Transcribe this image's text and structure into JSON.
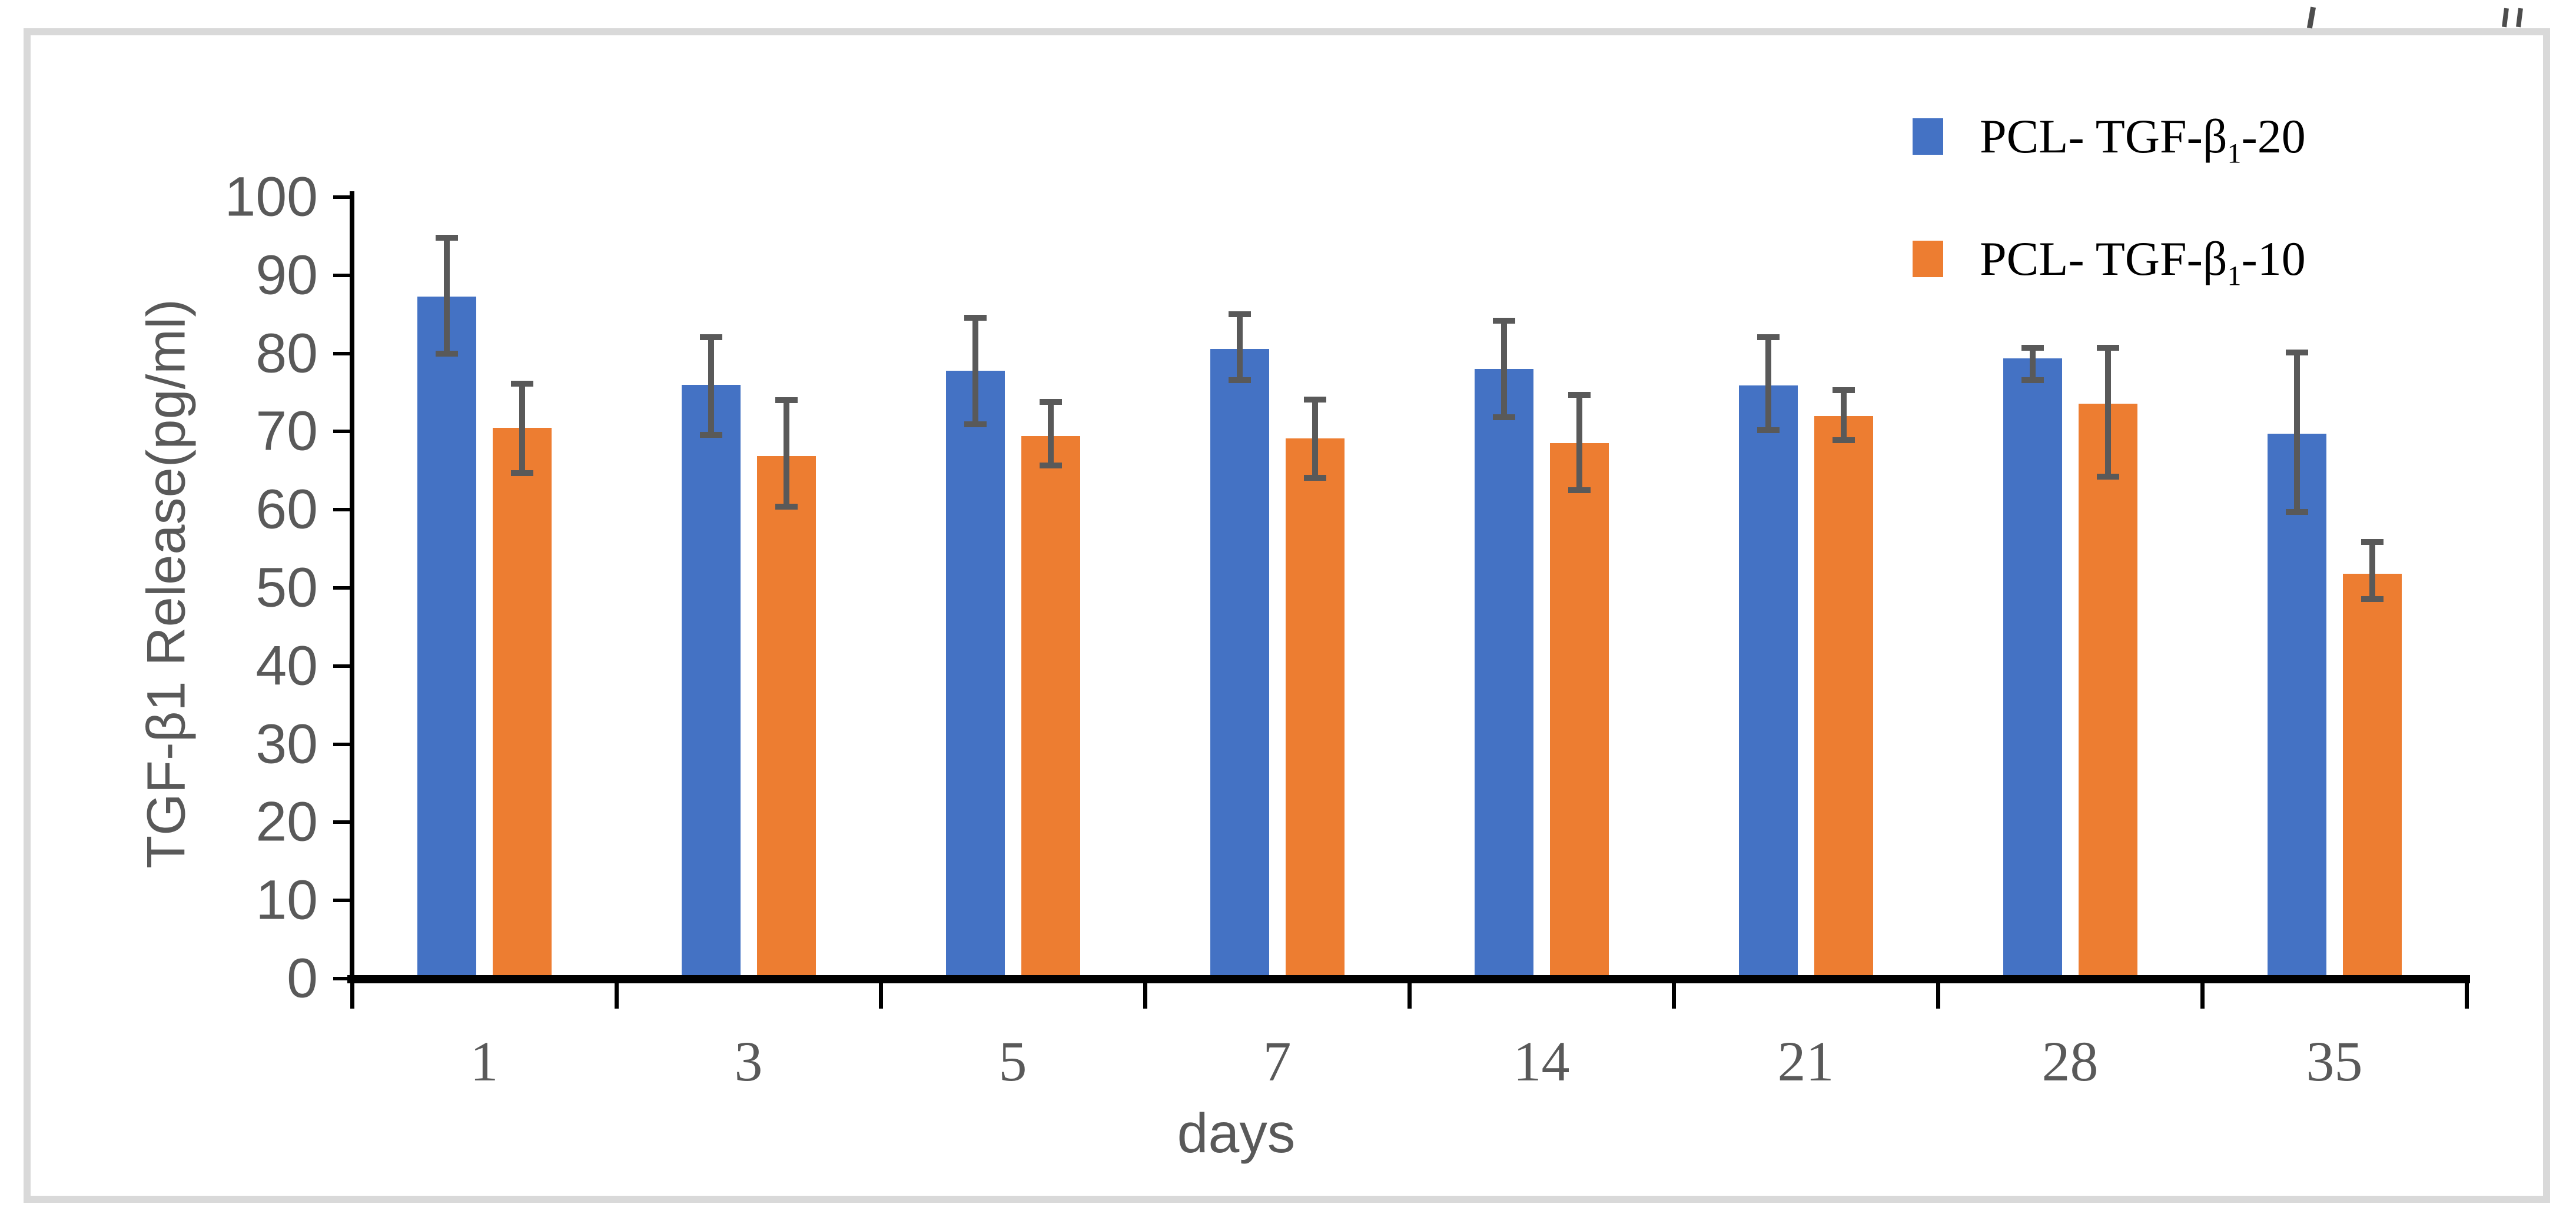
{
  "figure": {
    "border_color": "#d9d9d9",
    "background": "#ffffff",
    "axis_color": "#000000",
    "tick_label_color": "#595959",
    "error_bar_color": "#595959",
    "top_fragments": [
      "small-cropped-mark",
      "small-cropped-double-mark"
    ]
  },
  "legend": {
    "items": [
      {
        "prefix": "PCL- TGF-β",
        "sub": "1",
        "suffix": "-20",
        "color": "#4472C4"
      },
      {
        "prefix": "PCL- TGF-β",
        "sub": "1",
        "suffix": "-10",
        "color": "#ED7D31"
      }
    ]
  },
  "chart_data": {
    "type": "bar",
    "title": "",
    "xlabel": "days",
    "ylabel": "TGF-β1 Release(pg/ml)",
    "categories": [
      "1",
      "3",
      "5",
      "7",
      "14",
      "21",
      "28",
      "35"
    ],
    "yticks": [
      "0",
      "10",
      "20",
      "30",
      "40",
      "50",
      "60",
      "70",
      "80",
      "90",
      "100"
    ],
    "ylim": [
      0,
      100
    ],
    "grid": false,
    "legend_position": "top-right",
    "series": [
      {
        "name": "PCL- TGF-β1-20",
        "color": "#4472C4",
        "values": [
          87.3,
          76.0,
          77.8,
          80.6,
          78.0,
          75.9,
          79.4,
          69.7
        ],
        "error_low": [
          80.0,
          69.6,
          70.9,
          76.6,
          71.8,
          70.2,
          76.6,
          59.7
        ],
        "error_high": [
          94.8,
          82.1,
          84.6,
          85.0,
          84.2,
          82.1,
          80.7,
          80.1
        ]
      },
      {
        "name": "PCL- TGF-β1-10",
        "color": "#ED7D31",
        "values": [
          70.5,
          66.9,
          69.4,
          69.1,
          68.5,
          72.0,
          73.6,
          51.8
        ],
        "error_low": [
          64.7,
          60.4,
          65.7,
          64.1,
          62.5,
          68.9,
          64.2,
          48.6
        ],
        "error_high": [
          76.1,
          74.0,
          73.8,
          74.1,
          74.7,
          75.3,
          80.7,
          55.9
        ]
      }
    ]
  }
}
